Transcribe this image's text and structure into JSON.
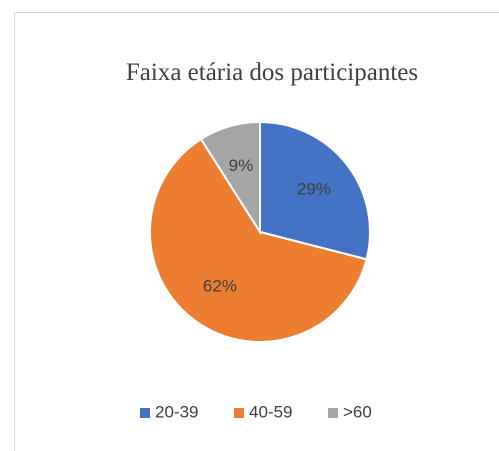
{
  "chart_data": {
    "type": "pie",
    "title": "Faixa etária dos participantes",
    "categories": [
      "20-39",
      "40-59",
      ">60"
    ],
    "values": [
      29,
      62,
      9
    ],
    "value_labels": [
      "29%",
      "62%",
      "9%"
    ],
    "colors": [
      "#4472c4",
      "#ed7d31",
      "#a5a5a5"
    ],
    "legend": "bottom"
  }
}
